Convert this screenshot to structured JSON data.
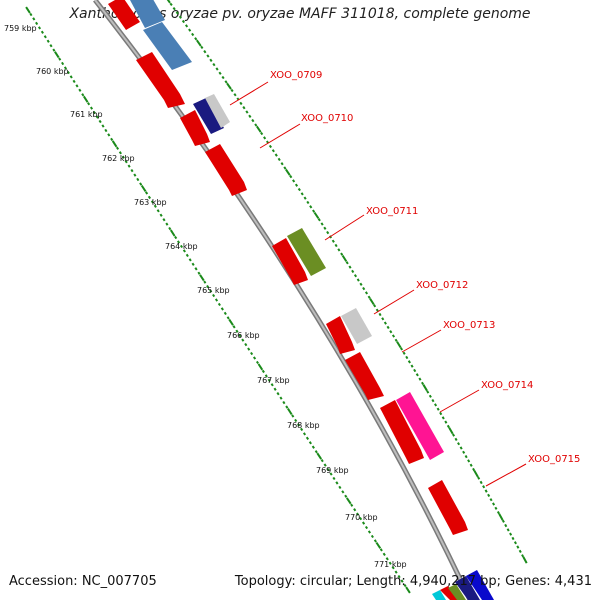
{
  "title": "Xanthomonas oryzae pv. oryzae MAFF 311018, complete genome",
  "accession_text": "Accession: NC_007705",
  "topology_text": "Topology: circular; Length: 4,940,217 bp; Genes: 4,431",
  "colors": {
    "label": "#e00000",
    "scale_ticks": "#1a8a1a",
    "backbone": "#888888"
  },
  "kbp_ticks": [
    "759 kbp",
    "760 kbp",
    "761 kbp",
    "762 kbp",
    "763 kbp",
    "764 kbp",
    "765 kbp",
    "766 kbp",
    "767 kbp",
    "768 kbp",
    "769 kbp",
    "770 kbp",
    "771 kbp"
  ],
  "genes": [
    {
      "label": "XOO_0709",
      "color": "#1a1a80",
      "highlight": true
    },
    {
      "label": "XOO_0710",
      "color": "#e00000",
      "highlight": false
    },
    {
      "label": "XOO_0711",
      "color": "#6b8e23",
      "highlight": true
    },
    {
      "label": "XOO_0712",
      "color": "#c8c8c8",
      "highlight": true
    },
    {
      "label": "XOO_0713",
      "color": "#e00000",
      "highlight": false
    },
    {
      "label": "XOO_0714",
      "color": "#ff1493",
      "highlight": true
    },
    {
      "label": "XOO_0715",
      "color": "#e00000",
      "highlight": false
    }
  ]
}
